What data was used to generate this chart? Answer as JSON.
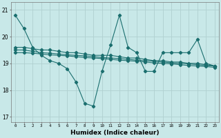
{
  "x": [
    0,
    1,
    2,
    3,
    4,
    5,
    6,
    7,
    8,
    9,
    10,
    11,
    12,
    13,
    14,
    15,
    16,
    17,
    18,
    19,
    20,
    21,
    22,
    23
  ],
  "line1": [
    20.8,
    20.3,
    19.6,
    19.3,
    19.1,
    19.0,
    18.8,
    18.3,
    17.5,
    17.4,
    18.7,
    19.7,
    20.8,
    19.6,
    19.4,
    18.7,
    18.7,
    19.4,
    19.4,
    19.4,
    19.4,
    19.9,
    19.0,
    18.9
  ],
  "line2": [
    19.6,
    19.6,
    19.55,
    19.5,
    19.5,
    19.45,
    19.4,
    19.4,
    19.35,
    19.3,
    19.3,
    19.3,
    19.25,
    19.2,
    19.2,
    19.15,
    19.1,
    19.1,
    19.05,
    19.05,
    19.0,
    19.0,
    18.95,
    18.9
  ],
  "line3": [
    19.5,
    19.5,
    19.45,
    19.4,
    19.38,
    19.35,
    19.32,
    19.3,
    19.28,
    19.25,
    19.22,
    19.2,
    19.18,
    19.15,
    19.12,
    19.1,
    19.08,
    19.05,
    19.02,
    19.0,
    18.98,
    18.95,
    18.92,
    18.9
  ],
  "line4": [
    19.4,
    19.4,
    19.38,
    19.35,
    19.32,
    19.3,
    19.28,
    19.25,
    19.22,
    19.2,
    19.18,
    19.15,
    19.12,
    19.1,
    19.08,
    19.05,
    19.02,
    19.0,
    18.98,
    18.95,
    18.92,
    18.9,
    18.88,
    18.85
  ],
  "bg_color": "#c8e8e8",
  "line_color": "#1a6e6e",
  "grid_color": "#b0d0d0",
  "xlabel": "Humidex (Indice chaleur)",
  "yticks": [
    17,
    18,
    19,
    20,
    21
  ],
  "xticks": [
    0,
    1,
    2,
    3,
    4,
    5,
    6,
    7,
    8,
    9,
    10,
    11,
    12,
    13,
    14,
    15,
    16,
    17,
    18,
    19,
    20,
    21,
    22,
    23
  ],
  "ylim": [
    16.8,
    21.3
  ],
  "xlim": [
    -0.5,
    23.5
  ]
}
